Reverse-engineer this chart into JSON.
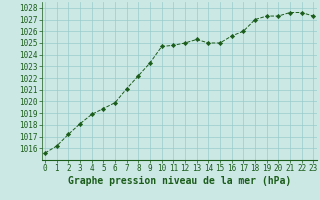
{
  "x": [
    0,
    1,
    2,
    3,
    4,
    5,
    6,
    7,
    8,
    9,
    10,
    11,
    12,
    13,
    14,
    15,
    16,
    17,
    18,
    19,
    20,
    21,
    22,
    23
  ],
  "y": [
    1015.6,
    1016.2,
    1017.2,
    1018.1,
    1018.9,
    1019.4,
    1019.9,
    1021.1,
    1022.2,
    1023.3,
    1024.7,
    1024.8,
    1025.0,
    1025.3,
    1025.0,
    1025.0,
    1025.6,
    1026.0,
    1027.0,
    1027.3,
    1027.3,
    1027.6,
    1027.6,
    1027.3
  ],
  "bg_color": "#cce8e4",
  "grid_color": "#99cccc",
  "line_color": "#1a5c1a",
  "marker_color": "#1a5c1a",
  "xlabel": "Graphe pression niveau de la mer (hPa)",
  "xlabel_color": "#1a5c1a",
  "tick_color": "#1a5c1a",
  "ylim": [
    1015.0,
    1028.5
  ],
  "xlim": [
    -0.3,
    23.3
  ],
  "yticks": [
    1016,
    1017,
    1018,
    1019,
    1020,
    1021,
    1022,
    1023,
    1024,
    1025,
    1026,
    1027,
    1028
  ],
  "xticks": [
    0,
    1,
    2,
    3,
    4,
    5,
    6,
    7,
    8,
    9,
    10,
    11,
    12,
    13,
    14,
    15,
    16,
    17,
    18,
    19,
    20,
    21,
    22,
    23
  ],
  "tick_fontsize": 5.5,
  "xlabel_fontsize": 7.0
}
